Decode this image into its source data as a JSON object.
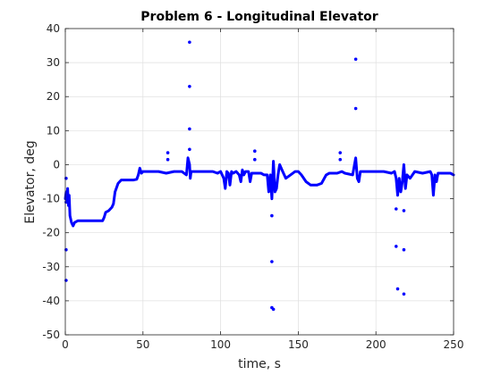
{
  "chart_data": {
    "type": "line",
    "title": "Problem 6 - Longitudinal Elevator",
    "xlabel": "time, s",
    "ylabel": "Elevator, deg",
    "xlim": [
      0,
      250
    ],
    "ylim": [
      -50,
      40
    ],
    "xticks": [
      0,
      50,
      100,
      150,
      200,
      250
    ],
    "yticks": [
      -50,
      -40,
      -30,
      -20,
      -10,
      0,
      10,
      20,
      30,
      40
    ],
    "grid": true,
    "series_color": "#0000ff",
    "series": [
      {
        "style": "thick-line",
        "x": [
          0,
          0.5,
          1,
          1.5,
          2,
          2.5,
          3,
          4,
          5,
          6,
          8,
          10,
          15,
          20,
          24,
          25,
          26,
          28,
          30,
          31,
          32,
          34,
          36,
          40,
          44,
          46,
          47,
          48,
          49,
          50,
          55,
          60,
          65,
          70,
          75,
          78,
          79,
          80,
          80.5,
          81,
          82,
          85,
          90,
          95,
          98,
          100,
          102,
          103,
          104,
          105,
          106,
          107,
          108,
          110,
          112,
          113,
          114,
          115,
          116,
          118,
          119,
          120,
          122,
          124,
          125,
          126,
          128,
          130,
          131,
          132,
          133,
          134,
          135,
          136,
          137,
          138,
          140,
          142,
          145,
          148,
          150,
          152,
          155,
          158,
          160,
          162,
          165,
          168,
          170,
          175,
          178,
          180,
          185,
          187,
          188,
          189,
          190,
          192,
          195,
          200,
          205,
          210,
          212,
          213,
          214,
          215,
          216,
          217,
          218,
          219,
          220,
          222,
          225,
          230,
          235,
          236,
          237,
          238,
          239,
          240,
          242,
          245,
          248,
          250
        ],
        "y": [
          -10,
          -8,
          -11,
          -7,
          -12,
          -9,
          -15,
          -17,
          -18,
          -17,
          -16.5,
          -16.5,
          -16.5,
          -16.5,
          -16.5,
          -15.5,
          -14,
          -13.5,
          -12.5,
          -11.5,
          -8,
          -5.5,
          -4.5,
          -4.5,
          -4.5,
          -4.3,
          -3,
          -1,
          -2.5,
          -2,
          -2,
          -2,
          -2.5,
          -2,
          -2,
          -3,
          2,
          0,
          -4,
          -2,
          -2,
          -2,
          -2,
          -2,
          -2.5,
          -2,
          -4,
          -7,
          -2,
          -2.5,
          -6,
          -2,
          -2.5,
          -2,
          -3,
          -5,
          -1.5,
          -3,
          -2,
          -2,
          -5,
          -2.5,
          -2.5,
          -2.5,
          -2.5,
          -2.5,
          -3,
          -3,
          -8,
          -3,
          -10,
          1,
          -8,
          -7,
          -3,
          0,
          -2,
          -4,
          -3,
          -2,
          -2,
          -3,
          -5,
          -6,
          -6,
          -6,
          -5.5,
          -3,
          -2.5,
          -2.5,
          -2,
          -2.5,
          -3,
          2,
          -4,
          -5,
          -2,
          -2,
          -2,
          -2,
          -2,
          -2.5,
          -2,
          -4,
          -9,
          -4,
          -8,
          -5,
          0,
          -7,
          -3,
          -4,
          -2,
          -2.5,
          -2,
          -3,
          -9,
          -3,
          -5,
          -2.5,
          -2.5,
          -2.5,
          -2.5,
          -3
        ]
      },
      {
        "style": "markers",
        "x": [
          0.5,
          0.5,
          0.5,
          0.5,
          66,
          66,
          80,
          80,
          80,
          80,
          122,
          122,
          133,
          133,
          133,
          134,
          177,
          177,
          187,
          187,
          213,
          213,
          214,
          218,
          218,
          218
        ],
        "y": [
          -4,
          -25,
          -34,
          -11,
          3.5,
          1.5,
          36,
          23,
          10.5,
          4.5,
          4,
          1.5,
          -15,
          -28.5,
          -42,
          -42.5,
          3.5,
          1.5,
          31,
          16.5,
          -13,
          -24,
          -36.5,
          -13.5,
          -25,
          -38
        ]
      }
    ]
  }
}
